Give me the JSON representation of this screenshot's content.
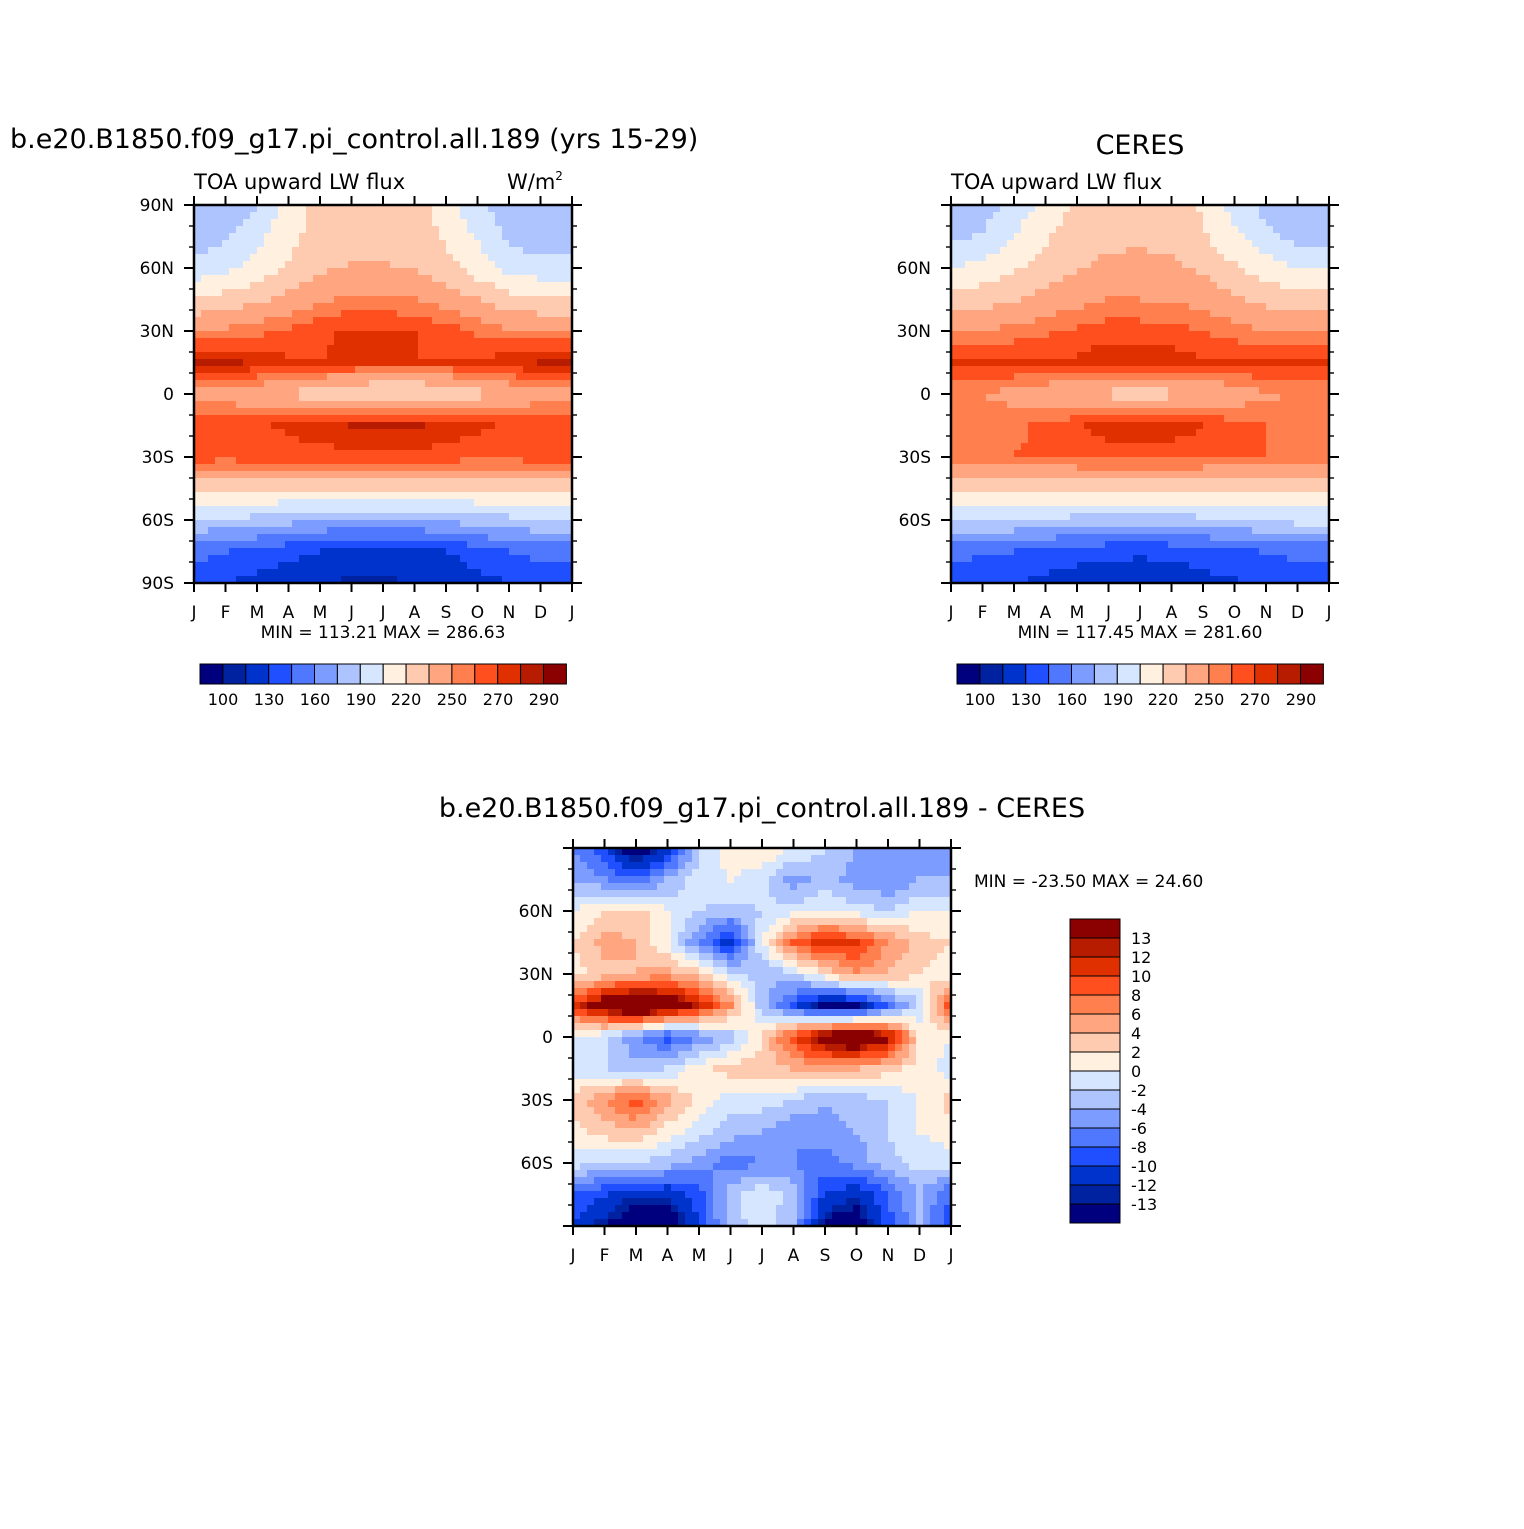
{
  "colors": {
    "palette14": [
      "#00007f",
      "#0022a0",
      "#0033cc",
      "#1f4fff",
      "#4f78ff",
      "#7c9cff",
      "#adc4ff",
      "#d6e6ff",
      "#fff0df",
      "#ffcbb0",
      "#ffa580",
      "#ff7f4f",
      "#ff4f1f",
      "#e03000",
      "#b81c00",
      "#8b0000"
    ]
  },
  "panels": [
    {
      "id": "model",
      "title": "b.e20.B1850.f09_g17.pi_control.all.189 (yrs 15-29)",
      "left_label": "TOA upward LW flux",
      "right_label": "W/m",
      "right_label_sup": "2",
      "y_ticks": [
        "90N",
        "60N",
        "30N",
        "0",
        "30S",
        "60S",
        "90S"
      ],
      "x_ticks": [
        "J",
        "F",
        "M",
        "A",
        "M",
        "J",
        "J",
        "A",
        "S",
        "O",
        "N",
        "D",
        "J"
      ],
      "minmax": "MIN = 113.21 MAX = 286.63",
      "colorbar_labels": [
        "100",
        "130",
        "160",
        "190",
        "220",
        "250",
        "270",
        "290"
      ]
    },
    {
      "id": "obs",
      "title": "CERES",
      "left_label": "TOA upward LW flux",
      "y_ticks": [
        "60N",
        "30N",
        "0",
        "30S",
        "60S"
      ],
      "x_ticks": [
        "J",
        "F",
        "M",
        "A",
        "M",
        "J",
        "J",
        "A",
        "S",
        "O",
        "N",
        "D",
        "J"
      ],
      "minmax": "MIN = 117.45 MAX = 281.60",
      "colorbar_labels": [
        "100",
        "130",
        "160",
        "190",
        "220",
        "250",
        "270",
        "290"
      ]
    },
    {
      "id": "diff",
      "title": "b.e20.B1850.f09_g17.pi_control.all.189 - CERES",
      "y_ticks": [
        "60N",
        "30N",
        "0",
        "30S",
        "60S"
      ],
      "x_ticks": [
        "J",
        "F",
        "M",
        "A",
        "M",
        "J",
        "J",
        "A",
        "S",
        "O",
        "N",
        "D",
        "J"
      ],
      "minmax": "MIN = -23.50 MAX = 24.60",
      "colorbar_labels": [
        "13",
        "12",
        "10",
        "8",
        "6",
        "4",
        "2",
        "0",
        "-2",
        "-4",
        "-6",
        "-8",
        "-10",
        "-12",
        "-13"
      ]
    }
  ],
  "chart_data": [
    {
      "type": "heatmap",
      "title": "b.e20.B1850.f09_g17.pi_control.all.189 (yrs 15-29)",
      "variable": "TOA upward LW flux",
      "units": "W/m2",
      "x": [
        "J",
        "F",
        "M",
        "A",
        "M",
        "J",
        "J",
        "A",
        "S",
        "O",
        "N",
        "D",
        "J"
      ],
      "y": [
        90,
        75,
        60,
        45,
        30,
        15,
        0,
        -15,
        -30,
        -45,
        -60,
        -75,
        -90
      ],
      "values": [
        [
          175,
          180,
          190,
          210,
          225,
          230,
          232,
          228,
          212,
          195,
          180,
          175,
          175
        ],
        [
          180,
          188,
          200,
          215,
          228,
          232,
          233,
          230,
          218,
          203,
          188,
          180,
          180
        ],
        [
          195,
          200,
          210,
          222,
          232,
          236,
          236,
          234,
          226,
          212,
          200,
          195,
          195
        ],
        [
          222,
          226,
          232,
          240,
          248,
          252,
          252,
          250,
          244,
          235,
          226,
          222,
          222
        ],
        [
          250,
          252,
          256,
          262,
          268,
          272,
          272,
          270,
          265,
          258,
          252,
          250,
          250
        ],
        [
          282,
          283,
          278,
          272,
          270,
          272,
          272,
          270,
          270,
          272,
          276,
          280,
          282
        ],
        [
          245,
          243,
          238,
          232,
          226,
          218,
          215,
          216,
          222,
          230,
          238,
          244,
          245
        ],
        [
          265,
          266,
          268,
          272,
          276,
          281,
          284,
          282,
          276,
          272,
          268,
          266,
          265
        ],
        [
          265,
          264,
          265,
          266,
          266,
          266,
          266,
          266,
          265,
          264,
          264,
          265,
          265
        ],
        [
          225,
          225,
          224,
          224,
          223,
          222,
          222,
          222,
          223,
          224,
          224,
          225,
          225
        ],
        [
          190,
          188,
          185,
          180,
          176,
          175,
          175,
          176,
          178,
          182,
          186,
          190,
          190
        ],
        [
          150,
          145,
          140,
          135,
          130,
          125,
          122,
          125,
          130,
          138,
          145,
          150,
          150
        ],
        [
          135,
          130,
          125,
          120,
          115,
          113,
          113,
          115,
          118,
          125,
          130,
          135,
          135
        ]
      ]
    },
    {
      "type": "heatmap",
      "title": "CERES",
      "variable": "TOA upward LW flux",
      "x": [
        "J",
        "F",
        "M",
        "A",
        "M",
        "J",
        "J",
        "A",
        "S",
        "O",
        "N",
        "D",
        "J"
      ],
      "y": [
        90,
        75,
        60,
        45,
        30,
        15,
        0,
        -15,
        -30,
        -45,
        -60,
        -75,
        -90
      ],
      "values": [
        [
          175,
          182,
          195,
          210,
          222,
          228,
          230,
          228,
          218,
          200,
          185,
          175,
          175
        ],
        [
          185,
          192,
          205,
          218,
          228,
          232,
          233,
          232,
          222,
          208,
          195,
          185,
          185
        ],
        [
          205,
          210,
          218,
          226,
          234,
          238,
          238,
          237,
          232,
          222,
          212,
          205,
          205
        ],
        [
          225,
          228,
          234,
          240,
          246,
          250,
          250,
          249,
          245,
          238,
          230,
          225,
          225
        ],
        [
          248,
          250,
          254,
          258,
          262,
          265,
          265,
          264,
          260,
          255,
          250,
          248,
          248
        ],
        [
          275,
          275,
          272,
          270,
          272,
          278,
          278,
          276,
          272,
          270,
          272,
          275,
          275
        ],
        [
          250,
          250,
          245,
          240,
          236,
          230,
          228,
          230,
          236,
          242,
          248,
          250,
          250
        ],
        [
          258,
          258,
          258,
          262,
          268,
          276,
          278,
          276,
          270,
          264,
          260,
          258,
          258
        ],
        [
          260,
          260,
          260,
          262,
          263,
          264,
          264,
          264,
          263,
          262,
          260,
          260,
          260
        ],
        [
          225,
          225,
          225,
          224,
          224,
          224,
          224,
          224,
          224,
          224,
          224,
          225,
          225
        ],
        [
          195,
          192,
          190,
          188,
          185,
          183,
          183,
          184,
          186,
          188,
          192,
          195,
          195
        ],
        [
          150,
          148,
          145,
          140,
          136,
          134,
          133,
          134,
          138,
          142,
          146,
          150,
          150
        ],
        [
          135,
          132,
          130,
          126,
          122,
          120,
          118,
          120,
          124,
          128,
          132,
          135,
          135
        ]
      ]
    },
    {
      "type": "heatmap",
      "title": "b.e20.B1850.f09_g17.pi_control.all.189 - CERES",
      "x": [
        "J",
        "F",
        "M",
        "A",
        "M",
        "J",
        "J",
        "A",
        "S",
        "O",
        "N",
        "D",
        "J"
      ],
      "y": [
        90,
        75,
        60,
        45,
        30,
        15,
        0,
        -15,
        -30,
        -45,
        -60,
        -75,
        -90
      ],
      "values": [
        [
          -6,
          -10,
          -16,
          -12,
          -2,
          1,
          2,
          0,
          -2,
          -4,
          -4,
          -6,
          -6
        ],
        [
          -4,
          -6,
          -8,
          -4,
          -1,
          0,
          -1,
          -5,
          -3,
          -5,
          -6,
          -4,
          -4
        ],
        [
          0,
          2,
          3,
          0,
          -2,
          -3,
          -2,
          -1,
          0,
          -1,
          -2,
          0,
          0
        ],
        [
          2,
          5,
          4,
          0,
          -6,
          -12,
          0,
          8,
          12,
          10,
          6,
          3,
          2
        ],
        [
          1,
          3,
          4,
          5,
          3,
          -1,
          -4,
          -2,
          2,
          6,
          4,
          2,
          1
        ],
        [
          10,
          16,
          20,
          17,
          12,
          6,
          -3,
          -9,
          -15,
          -14,
          -8,
          -2,
          10
        ],
        [
          0,
          -2,
          -6,
          -9,
          -6,
          -3,
          2,
          10,
          16,
          18,
          14,
          2,
          0
        ],
        [
          -1,
          -2,
          -3,
          -2,
          1,
          3,
          3,
          4,
          5,
          4,
          3,
          1,
          -1
        ],
        [
          3,
          6,
          9,
          5,
          1,
          -1,
          -1,
          -2,
          -4,
          -3,
          -2,
          0,
          3
        ],
        [
          1,
          3,
          4,
          1,
          -1,
          -3,
          -4,
          -6,
          -5,
          -4,
          -2,
          0,
          1
        ],
        [
          -1,
          -2,
          -2,
          -3,
          -5,
          -7,
          -6,
          -6,
          -7,
          -5,
          -3,
          -1,
          -1
        ],
        [
          -8,
          -10,
          -12,
          -12,
          -9,
          -3,
          0,
          -3,
          -10,
          -12,
          -8,
          -4,
          -8
        ],
        [
          -10,
          -13,
          -15,
          -15,
          -10,
          -3,
          -1,
          -4,
          -14,
          -15,
          -9,
          -4,
          -10
        ]
      ]
    }
  ]
}
